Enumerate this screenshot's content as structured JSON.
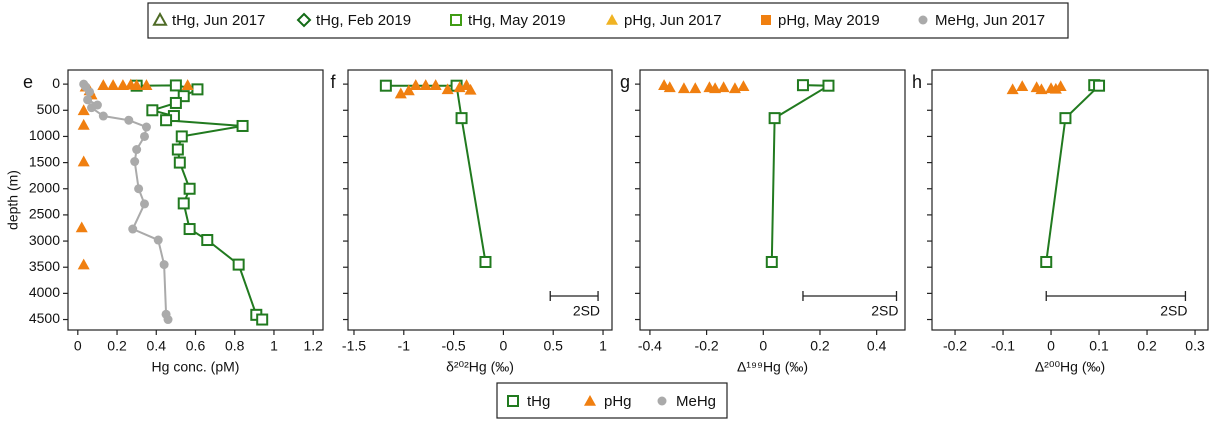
{
  "legend": [
    {
      "name": "tHg, Jun 2017",
      "color": "#4e6b26",
      "marker": "open-triangle"
    },
    {
      "name": "tHg, Feb 2019",
      "color": "#136b16",
      "marker": "open-diamond"
    },
    {
      "name": "tHg, May 2019",
      "color": "#3f9c14",
      "marker": "open-square"
    },
    {
      "name": "pHg, Jun 2017",
      "color": "#f0b323",
      "marker": "triangle"
    },
    {
      "name": "pHg, May 2019",
      "color": "#f07f10",
      "marker": "square"
    },
    {
      "name": "MeHg, Jun 2017",
      "color": "#aaaaaa",
      "marker": "circle"
    }
  ],
  "chart_data": [
    {
      "type": "scatter",
      "label": "e",
      "xlabel": "Hg conc. (pM)",
      "ylabel": "depth (m)",
      "xlim": [
        -0.05,
        1.25
      ],
      "xticks": [
        0,
        0.2,
        0.4,
        0.6,
        0.8,
        1,
        1.2
      ],
      "ylim": [
        4700,
        -270
      ],
      "yticks": [
        0,
        500,
        1000,
        1500,
        2000,
        2500,
        3000,
        3500,
        4000,
        4500
      ],
      "ytick_labels": true,
      "series": [
        {
          "name": "tHg",
          "color": "#217a1f",
          "marker": "open-square",
          "line": true,
          "x": [
            0.3,
            0.5,
            0.61,
            0.54,
            0.5,
            0.38,
            0.49,
            0.45,
            0.84,
            0.53,
            0.51,
            0.52,
            0.57,
            0.54,
            0.57,
            0.66,
            0.82,
            0.91,
            0.94
          ],
          "values": [
            30,
            25,
            100,
            230,
            360,
            500,
            610,
            690,
            800,
            1000,
            1250,
            1500,
            2000,
            2280,
            2770,
            2980,
            3450,
            4410,
            4500
          ]
        },
        {
          "name": "pHg",
          "color": "#f07f10",
          "marker": "triangle",
          "line": false,
          "x": [
            0.13,
            0.18,
            0.23,
            0.27,
            0.3,
            0.35,
            0.56,
            0.04,
            0.06,
            0.07,
            0.03,
            0.03,
            0.03,
            0.02,
            0.03
          ],
          "values": [
            20,
            20,
            20,
            10,
            20,
            20,
            20,
            50,
            120,
            200,
            500,
            780,
            1480,
            2740,
            3450
          ]
        },
        {
          "name": "MeHg",
          "color": "#aaaaaa",
          "marker": "circle",
          "line": true,
          "x": [
            0.03,
            0.04,
            0.06,
            0.05,
            0.1,
            0.07,
            0.13,
            0.26,
            0.35,
            0.34,
            0.3,
            0.29,
            0.31,
            0.34,
            0.28,
            0.41,
            0.44,
            0.45,
            0.46
          ],
          "values": [
            0,
            50,
            150,
            300,
            400,
            450,
            610,
            690,
            820,
            1000,
            1250,
            1480,
            2000,
            2290,
            2770,
            2980,
            3450,
            4400,
            4500
          ]
        }
      ]
    },
    {
      "type": "scatter",
      "label": "f",
      "xlabel": "δ²⁰²Hg (‰)",
      "xlim": [
        -1.56,
        1.09
      ],
      "xticks": [
        -1.5,
        -1,
        -0.5,
        0,
        0.5,
        1
      ],
      "ylim": [
        4700,
        -270
      ],
      "yticks": [
        0,
        500,
        1000,
        1500,
        2000,
        2500,
        3000,
        3500,
        4000,
        4500
      ],
      "ytick_labels": false,
      "series": [
        {
          "name": "tHg",
          "color": "#217a1f",
          "marker": "open-square",
          "line": true,
          "x": [
            -1.18,
            -0.47,
            -0.42,
            -0.18
          ],
          "values": [
            30,
            30,
            650,
            3400
          ]
        },
        {
          "name": "pHg",
          "color": "#f07f10",
          "marker": "triangle",
          "line": false,
          "x": [
            -1.03,
            -0.95,
            -0.88,
            -0.78,
            -0.68,
            -0.56,
            -0.44,
            -0.37,
            -0.33
          ],
          "values": [
            180,
            120,
            20,
            20,
            20,
            100,
            60,
            20,
            110
          ]
        }
      ],
      "scale_bar": {
        "label": "2SD",
        "x": [
          0.47,
          0.95
        ],
        "y": 4050
      }
    },
    {
      "type": "scatter",
      "label": "g",
      "xlabel": "Δ¹⁹⁹Hg (‰)",
      "xlim": [
        -0.435,
        0.5
      ],
      "xticks": [
        -0.4,
        -0.2,
        0,
        0.2,
        0.4
      ],
      "ylim": [
        4700,
        -270
      ],
      "yticks": [
        0,
        500,
        1000,
        1500,
        2000,
        2500,
        3000,
        3500,
        4000,
        4500
      ],
      "ytick_labels": false,
      "series": [
        {
          "name": "tHg",
          "color": "#217a1f",
          "marker": "open-square",
          "line": true,
          "x": [
            0.14,
            0.23,
            0.04,
            0.03
          ],
          "values": [
            20,
            30,
            650,
            3400
          ]
        },
        {
          "name": "pHg",
          "color": "#f07f10",
          "marker": "triangle",
          "line": false,
          "x": [
            -0.35,
            -0.33,
            -0.28,
            -0.24,
            -0.19,
            -0.17,
            -0.14,
            -0.1,
            -0.07
          ],
          "values": [
            20,
            60,
            80,
            80,
            60,
            80,
            60,
            80,
            40
          ]
        }
      ],
      "scale_bar": {
        "label": "2SD",
        "x": [
          0.14,
          0.47
        ],
        "y": 4050
      }
    },
    {
      "type": "scatter",
      "label": "h",
      "xlabel": "Δ²⁰⁰Hg (‰)",
      "xlim": [
        -0.248,
        0.327
      ],
      "xticks": [
        -0.2,
        -0.1,
        0,
        0.1,
        0.2,
        0.3
      ],
      "ylim": [
        4700,
        -270
      ],
      "yticks": [
        0,
        500,
        1000,
        1500,
        2000,
        2500,
        3000,
        3500,
        4000,
        4500
      ],
      "ytick_labels": false,
      "series": [
        {
          "name": "tHg",
          "color": "#217a1f",
          "marker": "open-square",
          "line": true,
          "x": [
            0.09,
            0.1,
            0.03,
            -0.01
          ],
          "values": [
            20,
            30,
            650,
            3400
          ]
        },
        {
          "name": "pHg",
          "color": "#f07f10",
          "marker": "triangle",
          "line": false,
          "x": [
            -0.08,
            -0.06,
            -0.03,
            -0.02,
            0.0,
            0.01,
            0.02
          ],
          "values": [
            100,
            40,
            60,
            100,
            80,
            90,
            40
          ]
        }
      ],
      "scale_bar": {
        "label": "2SD",
        "x": [
          -0.01,
          0.28
        ],
        "y": 4050
      }
    }
  ]
}
